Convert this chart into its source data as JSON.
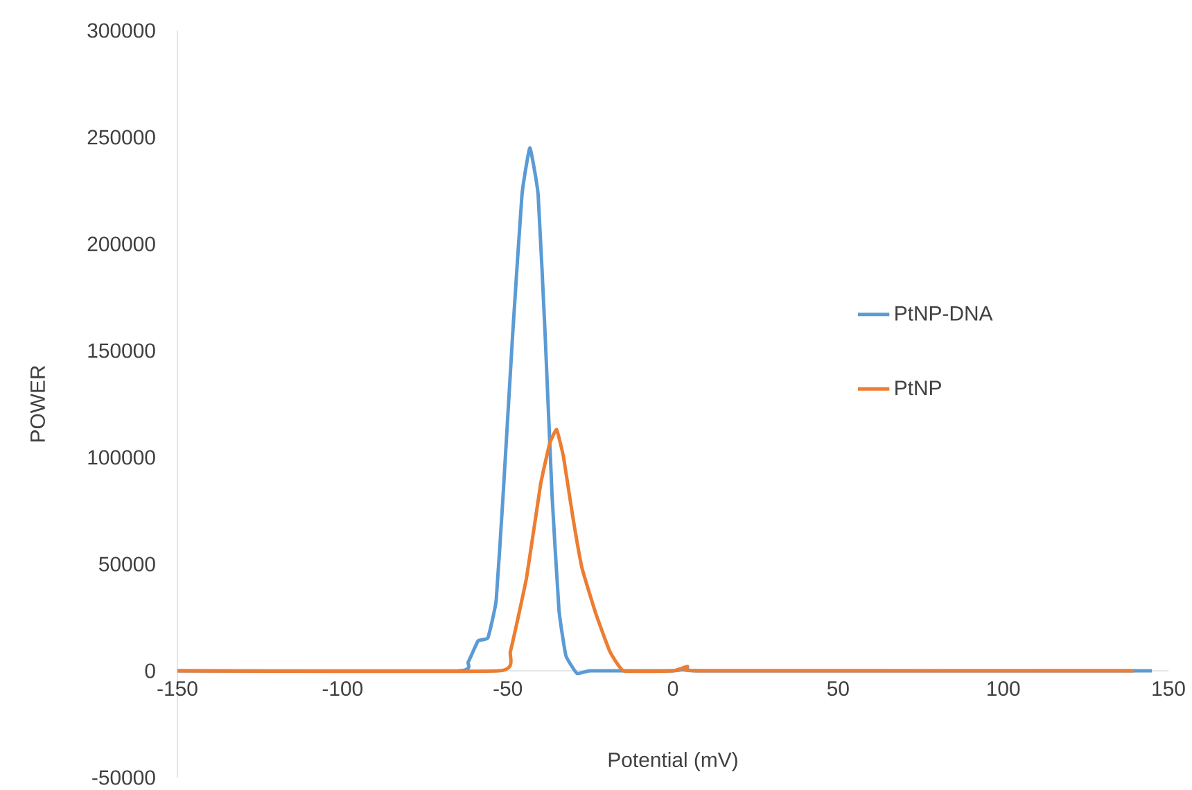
{
  "chart_data": {
    "type": "line",
    "xlabel": "Potential (mV)",
    "ylabel": "POWER",
    "xlim": [
      -150,
      150
    ],
    "ylim": [
      -50000,
      300000
    ],
    "xticks": [
      -150,
      -100,
      -50,
      0,
      50,
      100,
      150
    ],
    "yticks": [
      -50000,
      0,
      50000,
      100000,
      150000,
      200000,
      250000,
      300000
    ],
    "legend": "right",
    "series": [
      {
        "name": "PtNP-DNA",
        "color": "#5b9bd5",
        "x": [
          -150,
          -65,
          -62,
          -59,
          -56,
          -53.5,
          -51.4,
          -48.5,
          -45.7,
          -43.3,
          -40.8,
          -38.7,
          -36.6,
          -34.5,
          -32.4,
          -29,
          -25,
          0,
          4.4,
          8,
          145
        ],
        "values": [
          0,
          0,
          4000,
          14000,
          15500,
          33000,
          82500,
          158000,
          223000,
          245000,
          223000,
          158000,
          82500,
          28600,
          7100,
          -1300,
          0,
          0,
          1000,
          0,
          0
        ]
      },
      {
        "name": "PtNP",
        "color": "#ed7d31",
        "x": [
          -150,
          -52.7,
          -49.2,
          -44.3,
          -40.1,
          -37.3,
          -35.2,
          -33.1,
          -30.3,
          -27.5,
          -23.3,
          -19.1,
          -14.9,
          0,
          4.4,
          8,
          139.5
        ],
        "values": [
          0,
          0,
          9100,
          43700,
          87000,
          106500,
          113000,
          100000,
          72000,
          48000,
          26600,
          9100,
          0,
          0,
          2000,
          0,
          0
        ]
      }
    ]
  }
}
